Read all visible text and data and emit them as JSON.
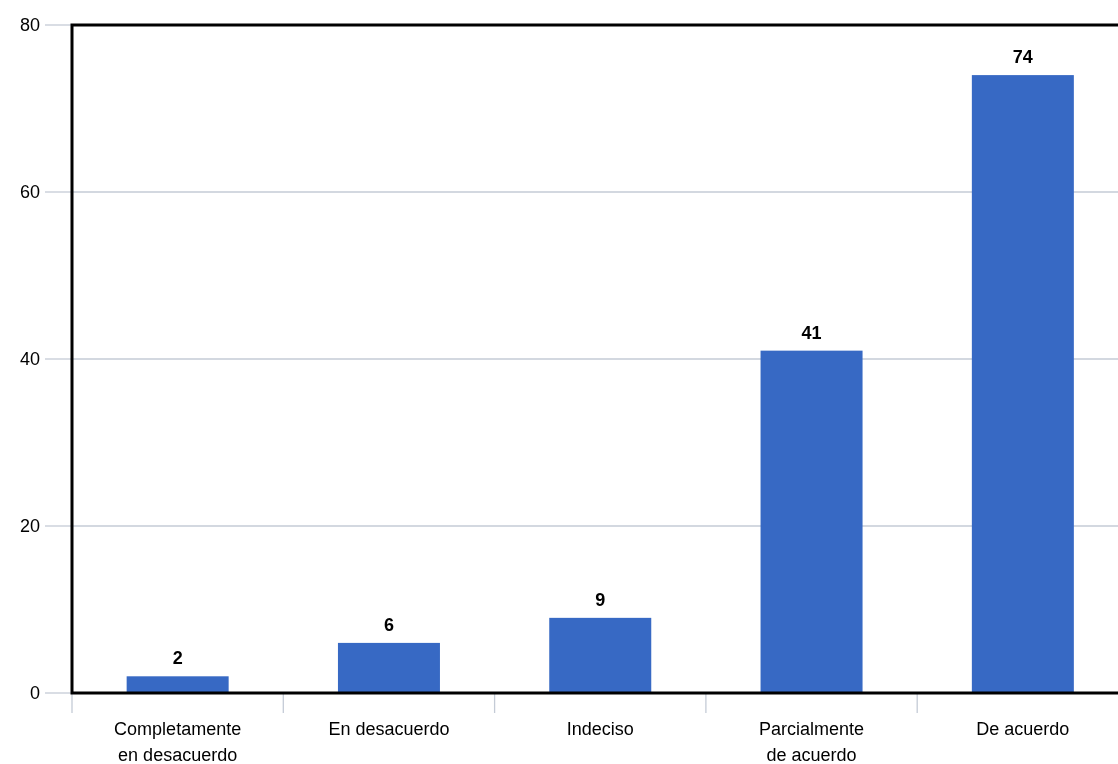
{
  "chart_data": {
    "type": "bar",
    "categories": [
      "Completamente en desacuerdo",
      "En desacuerdo",
      "Indeciso",
      "Parcialmente de acuerdo",
      "De acuerdo"
    ],
    "values": [
      2,
      6,
      9,
      41,
      74
    ],
    "color": "#3769c4",
    "ylim": [
      0,
      80
    ],
    "yticks": [
      0,
      20,
      40,
      60,
      80
    ],
    "grid": "y",
    "data_labels": true
  }
}
